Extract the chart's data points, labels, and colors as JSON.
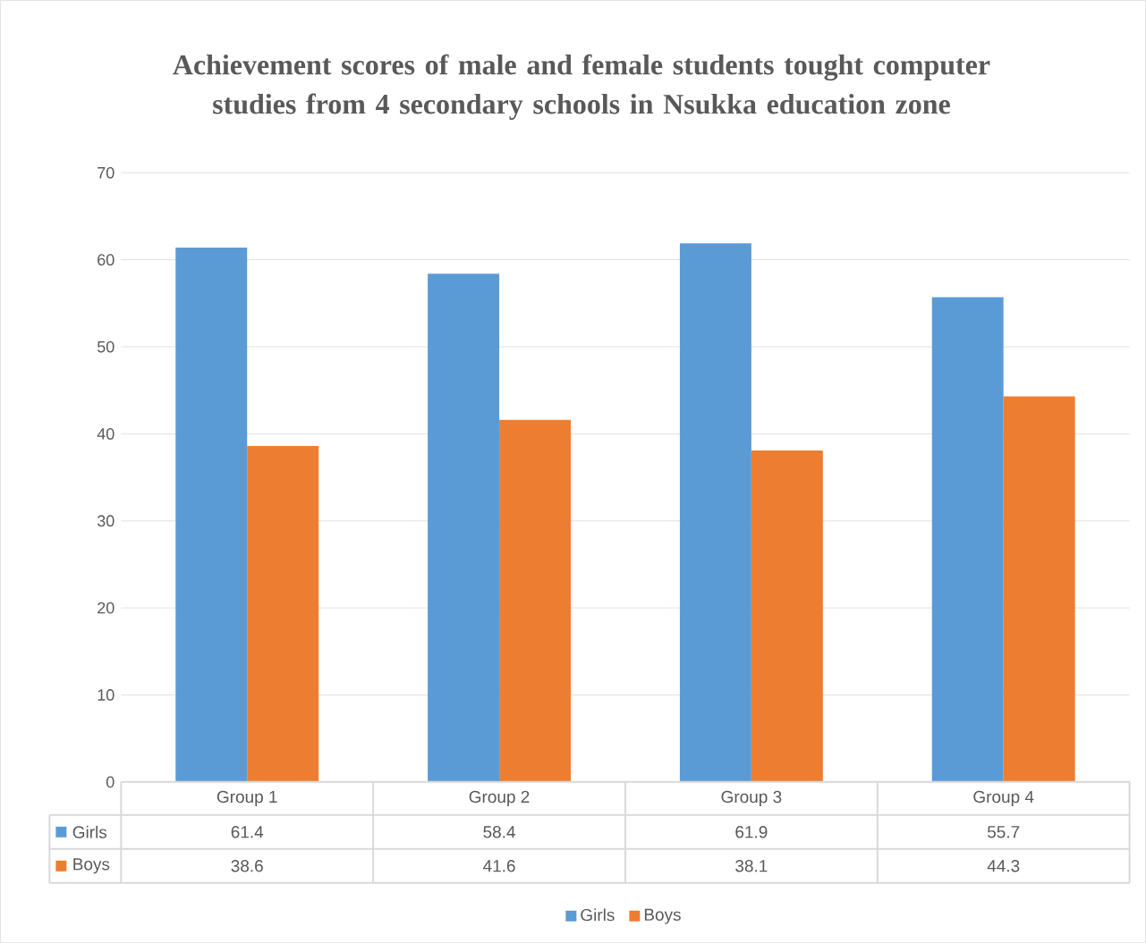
{
  "chart_data": {
    "type": "bar",
    "title": "Achievement scores of male and female students tought computer studies from 4 secondary schools in Nsukka education zone",
    "categories": [
      "Group 1",
      "Group 2",
      "Group 3",
      "Group 4"
    ],
    "series": [
      {
        "name": "Girls",
        "color": "#5b9bd5",
        "values": [
          61.4,
          58.4,
          61.9,
          55.7
        ]
      },
      {
        "name": "Boys",
        "color": "#ed7d31",
        "values": [
          38.6,
          41.6,
          38.1,
          44.3
        ]
      }
    ],
    "ylim": [
      0,
      70
    ],
    "yticks": [
      0,
      10,
      20,
      30,
      40,
      50,
      60,
      70
    ],
    "grid": "y",
    "legend": "bottom",
    "data_labels": true
  }
}
